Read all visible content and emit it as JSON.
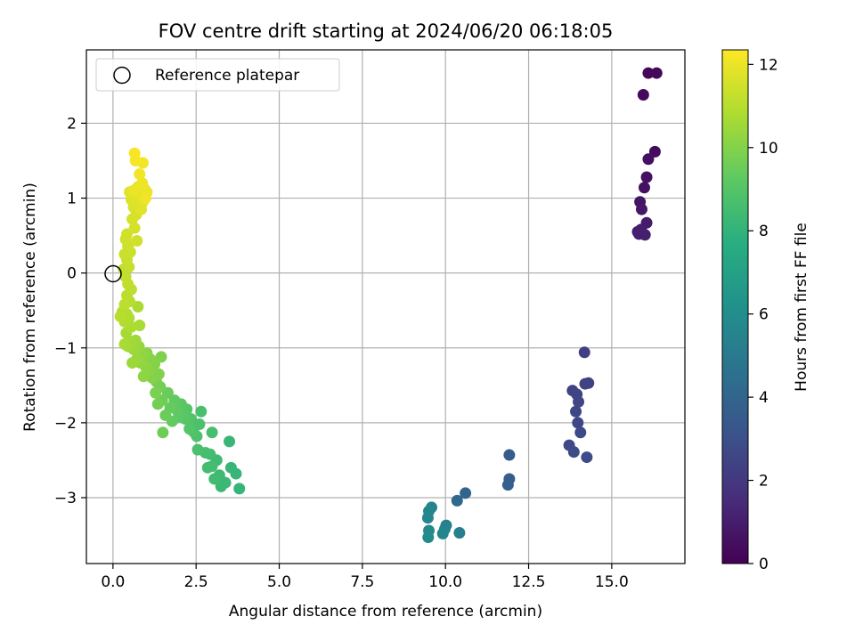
{
  "chart_data": {
    "type": "scatter",
    "title": "FOV centre drift starting at 2024/06/20 06:18:05",
    "xlabel": "Angular distance from reference (arcmin)",
    "ylabel": "Rotation from reference (arcmin)",
    "xlim": [
      -0.8,
      17.2
    ],
    "ylim": [
      -3.88,
      2.98
    ],
    "xticks": [
      0.0,
      2.5,
      5.0,
      7.5,
      10.0,
      12.5,
      15.0
    ],
    "xtick_labels": [
      "0.0",
      "2.5",
      "5.0",
      "7.5",
      "10.0",
      "12.5",
      "15.0"
    ],
    "yticks": [
      -3,
      -2,
      -1,
      0,
      1,
      2
    ],
    "ytick_labels": [
      "−3",
      "−2",
      "−1",
      "0",
      "1",
      "2"
    ],
    "grid": true,
    "legend": {
      "location": "upper left",
      "entries": [
        "Reference platepar"
      ]
    },
    "reference_point": {
      "x": 0.0,
      "y": 0.0
    },
    "colorbar": {
      "label": "Hours from first FF file",
      "range": [
        0,
        12.35
      ],
      "ticks": [
        0,
        2,
        4,
        6,
        8,
        10,
        12
      ],
      "tick_labels": [
        "0",
        "2",
        "4",
        "6",
        "8",
        "10",
        "12"
      ],
      "colormap": "viridis"
    },
    "points": [
      {
        "x": 16.1,
        "y": 2.67,
        "c": 0.2
      },
      {
        "x": 16.35,
        "y": 2.67,
        "c": 0.25
      },
      {
        "x": 15.95,
        "y": 2.38,
        "c": 0.3
      },
      {
        "x": 16.3,
        "y": 1.62,
        "c": 0.4
      },
      {
        "x": 16.1,
        "y": 1.52,
        "c": 0.5
      },
      {
        "x": 16.05,
        "y": 1.28,
        "c": 0.55
      },
      {
        "x": 15.98,
        "y": 1.14,
        "c": 0.6
      },
      {
        "x": 15.85,
        "y": 0.95,
        "c": 0.7
      },
      {
        "x": 15.9,
        "y": 0.85,
        "c": 0.8
      },
      {
        "x": 16.05,
        "y": 0.67,
        "c": 0.9
      },
      {
        "x": 15.88,
        "y": 0.58,
        "c": 0.95
      },
      {
        "x": 15.78,
        "y": 0.55,
        "c": 1.0
      },
      {
        "x": 16.0,
        "y": 0.51,
        "c": 1.05
      },
      {
        "x": 15.82,
        "y": 0.52,
        "c": 1.1
      },
      {
        "x": 14.18,
        "y": -1.06,
        "c": 2.3
      },
      {
        "x": 14.3,
        "y": -1.47,
        "c": 2.35
      },
      {
        "x": 14.2,
        "y": -1.48,
        "c": 2.4
      },
      {
        "x": 13.82,
        "y": -1.57,
        "c": 2.45
      },
      {
        "x": 13.95,
        "y": -1.62,
        "c": 2.5
      },
      {
        "x": 14.0,
        "y": -1.72,
        "c": 2.55
      },
      {
        "x": 13.92,
        "y": -1.85,
        "c": 2.6
      },
      {
        "x": 13.98,
        "y": -2.0,
        "c": 2.65
      },
      {
        "x": 14.06,
        "y": -2.13,
        "c": 2.7
      },
      {
        "x": 13.72,
        "y": -2.3,
        "c": 2.75
      },
      {
        "x": 13.86,
        "y": -2.39,
        "c": 2.8
      },
      {
        "x": 14.25,
        "y": -2.46,
        "c": 2.85
      },
      {
        "x": 11.92,
        "y": -2.43,
        "c": 3.5
      },
      {
        "x": 11.92,
        "y": -2.75,
        "c": 3.6
      },
      {
        "x": 11.88,
        "y": -2.83,
        "c": 3.7
      },
      {
        "x": 10.6,
        "y": -2.94,
        "c": 4.0
      },
      {
        "x": 10.35,
        "y": -3.04,
        "c": 4.2
      },
      {
        "x": 9.58,
        "y": -3.13,
        "c": 5.5
      },
      {
        "x": 9.5,
        "y": -3.18,
        "c": 5.6
      },
      {
        "x": 9.47,
        "y": -3.27,
        "c": 5.7
      },
      {
        "x": 9.5,
        "y": -3.44,
        "c": 5.8
      },
      {
        "x": 9.48,
        "y": -3.53,
        "c": 5.9
      },
      {
        "x": 10.02,
        "y": -3.37,
        "c": 5.4
      },
      {
        "x": 9.98,
        "y": -3.42,
        "c": 5.5
      },
      {
        "x": 9.92,
        "y": -3.48,
        "c": 5.6
      },
      {
        "x": 10.42,
        "y": -3.47,
        "c": 5.3
      },
      {
        "x": 3.8,
        "y": -2.88,
        "c": 8.1
      },
      {
        "x": 3.7,
        "y": -2.68,
        "c": 8.15
      },
      {
        "x": 3.55,
        "y": -2.6,
        "c": 8.2
      },
      {
        "x": 3.5,
        "y": -2.25,
        "c": 8.2
      },
      {
        "x": 3.38,
        "y": -2.8,
        "c": 8.25
      },
      {
        "x": 3.25,
        "y": -2.85,
        "c": 8.3
      },
      {
        "x": 3.2,
        "y": -2.7,
        "c": 8.35
      },
      {
        "x": 3.12,
        "y": -2.5,
        "c": 8.4
      },
      {
        "x": 3.05,
        "y": -2.75,
        "c": 8.45
      },
      {
        "x": 2.98,
        "y": -2.58,
        "c": 8.5
      },
      {
        "x": 2.92,
        "y": -2.42,
        "c": 8.5
      },
      {
        "x": 2.85,
        "y": -2.6,
        "c": 8.55
      },
      {
        "x": 2.78,
        "y": -2.4,
        "c": 8.6
      },
      {
        "x": 2.98,
        "y": -2.13,
        "c": 8.6
      },
      {
        "x": 2.55,
        "y": -2.36,
        "c": 8.7
      },
      {
        "x": 2.52,
        "y": -2.18,
        "c": 8.75
      },
      {
        "x": 2.48,
        "y": -2.03,
        "c": 8.8
      },
      {
        "x": 2.42,
        "y": -2.12,
        "c": 8.85
      },
      {
        "x": 2.35,
        "y": -1.95,
        "c": 8.9
      },
      {
        "x": 2.3,
        "y": -2.08,
        "c": 8.95
      },
      {
        "x": 2.22,
        "y": -1.82,
        "c": 9.0
      },
      {
        "x": 2.18,
        "y": -1.95,
        "c": 9.05
      },
      {
        "x": 2.12,
        "y": -1.88,
        "c": 9.1
      },
      {
        "x": 2.05,
        "y": -1.75,
        "c": 9.15
      },
      {
        "x": 1.98,
        "y": -1.92,
        "c": 9.2
      },
      {
        "x": 1.92,
        "y": -1.83,
        "c": 9.25
      },
      {
        "x": 1.85,
        "y": -1.7,
        "c": 9.3
      },
      {
        "x": 1.78,
        "y": -1.98,
        "c": 9.35
      },
      {
        "x": 1.72,
        "y": -1.8,
        "c": 9.4
      },
      {
        "x": 1.65,
        "y": -1.6,
        "c": 9.45
      },
      {
        "x": 1.58,
        "y": -1.9,
        "c": 9.5
      },
      {
        "x": 1.5,
        "y": -2.13,
        "c": 9.55
      },
      {
        "x": 1.48,
        "y": -1.7,
        "c": 9.6
      },
      {
        "x": 1.42,
        "y": -1.52,
        "c": 9.65
      },
      {
        "x": 1.35,
        "y": -1.75,
        "c": 9.7
      },
      {
        "x": 1.3,
        "y": -1.45,
        "c": 9.75
      },
      {
        "x": 1.28,
        "y": -1.6,
        "c": 9.8
      },
      {
        "x": 1.22,
        "y": -1.3,
        "c": 9.85
      },
      {
        "x": 2.65,
        "y": -1.85,
        "c": 8.7
      },
      {
        "x": 2.6,
        "y": -2.02,
        "c": 8.75
      },
      {
        "x": 1.45,
        "y": -1.12,
        "c": 9.9
      },
      {
        "x": 1.38,
        "y": -1.35,
        "c": 9.95
      },
      {
        "x": 1.25,
        "y": -1.22,
        "c": 10.0
      },
      {
        "x": 1.18,
        "y": -1.4,
        "c": 10.0
      },
      {
        "x": 1.12,
        "y": -1.15,
        "c": 10.05
      },
      {
        "x": 1.08,
        "y": -1.3,
        "c": 10.1
      },
      {
        "x": 1.02,
        "y": -1.07,
        "c": 10.15
      },
      {
        "x": 0.98,
        "y": -1.25,
        "c": 10.2
      },
      {
        "x": 0.92,
        "y": -1.38,
        "c": 10.2
      },
      {
        "x": 0.88,
        "y": -1.1,
        "c": 10.25
      },
      {
        "x": 0.82,
        "y": -1.2,
        "c": 10.3
      },
      {
        "x": 0.78,
        "y": -0.98,
        "c": 10.35
      },
      {
        "x": 0.72,
        "y": -1.15,
        "c": 10.4
      },
      {
        "x": 0.68,
        "y": -0.9,
        "c": 10.45
      },
      {
        "x": 0.62,
        "y": -1.02,
        "c": 10.5
      },
      {
        "x": 0.58,
        "y": -1.2,
        "c": 10.5
      },
      {
        "x": 0.52,
        "y": -0.92,
        "c": 10.55
      },
      {
        "x": 0.45,
        "y": -0.98,
        "c": 10.6
      },
      {
        "x": 0.4,
        "y": -0.8,
        "c": 10.65
      },
      {
        "x": 0.35,
        "y": -0.95,
        "c": 10.7
      },
      {
        "x": 0.8,
        "y": -0.7,
        "c": 10.7
      },
      {
        "x": 0.75,
        "y": -0.45,
        "c": 10.75
      },
      {
        "x": 0.55,
        "y": -0.72,
        "c": 10.8
      },
      {
        "x": 0.48,
        "y": -0.6,
        "c": 10.85
      },
      {
        "x": 0.42,
        "y": -0.55,
        "c": 10.9
      },
      {
        "x": 0.35,
        "y": -0.65,
        "c": 10.9
      },
      {
        "x": 0.28,
        "y": -0.52,
        "c": 10.95
      },
      {
        "x": 0.22,
        "y": -0.58,
        "c": 11.0
      },
      {
        "x": 0.5,
        "y": -0.38,
        "c": 11.0
      },
      {
        "x": 0.42,
        "y": -0.3,
        "c": 11.05
      },
      {
        "x": 0.35,
        "y": -0.42,
        "c": 11.1
      },
      {
        "x": 0.55,
        "y": -0.22,
        "c": 11.1
      },
      {
        "x": 0.45,
        "y": -0.15,
        "c": 11.15
      },
      {
        "x": 0.38,
        "y": -0.05,
        "c": 11.2
      },
      {
        "x": 0.32,
        "y": 0.05,
        "c": 11.2
      },
      {
        "x": 0.48,
        "y": 0.08,
        "c": 11.25
      },
      {
        "x": 0.42,
        "y": 0.18,
        "c": 11.3
      },
      {
        "x": 0.35,
        "y": 0.25,
        "c": 11.35
      },
      {
        "x": 0.52,
        "y": 0.28,
        "c": 11.35
      },
      {
        "x": 0.45,
        "y": 0.36,
        "c": 11.4
      },
      {
        "x": 0.38,
        "y": 0.45,
        "c": 11.45
      },
      {
        "x": 0.42,
        "y": 0.52,
        "c": 11.5
      },
      {
        "x": 0.72,
        "y": 0.43,
        "c": 11.5
      },
      {
        "x": 0.65,
        "y": 0.6,
        "c": 11.55
      },
      {
        "x": 0.58,
        "y": 0.72,
        "c": 11.6
      },
      {
        "x": 0.7,
        "y": 0.78,
        "c": 11.6
      },
      {
        "x": 0.62,
        "y": 0.88,
        "c": 11.65
      },
      {
        "x": 0.78,
        "y": 0.92,
        "c": 11.7
      },
      {
        "x": 0.68,
        "y": 1.0,
        "c": 11.75
      },
      {
        "x": 0.55,
        "y": 0.98,
        "c": 11.75
      },
      {
        "x": 0.5,
        "y": 1.08,
        "c": 11.8
      },
      {
        "x": 0.85,
        "y": 0.85,
        "c": 11.8
      },
      {
        "x": 0.9,
        "y": 0.95,
        "c": 11.85
      },
      {
        "x": 0.82,
        "y": 1.05,
        "c": 11.9
      },
      {
        "x": 0.95,
        "y": 1.12,
        "c": 11.9
      },
      {
        "x": 0.75,
        "y": 1.15,
        "c": 11.95
      },
      {
        "x": 0.62,
        "y": 1.1,
        "c": 12.0
      },
      {
        "x": 1.02,
        "y": 1.08,
        "c": 12.0
      },
      {
        "x": 0.88,
        "y": 1.2,
        "c": 12.05
      },
      {
        "x": 0.8,
        "y": 1.32,
        "c": 12.1
      },
      {
        "x": 0.9,
        "y": 1.47,
        "c": 12.15
      },
      {
        "x": 0.68,
        "y": 1.5,
        "c": 12.2
      },
      {
        "x": 0.65,
        "y": 1.6,
        "c": 12.25
      },
      {
        "x": 0.98,
        "y": 1.0,
        "c": 12.1
      }
    ]
  }
}
